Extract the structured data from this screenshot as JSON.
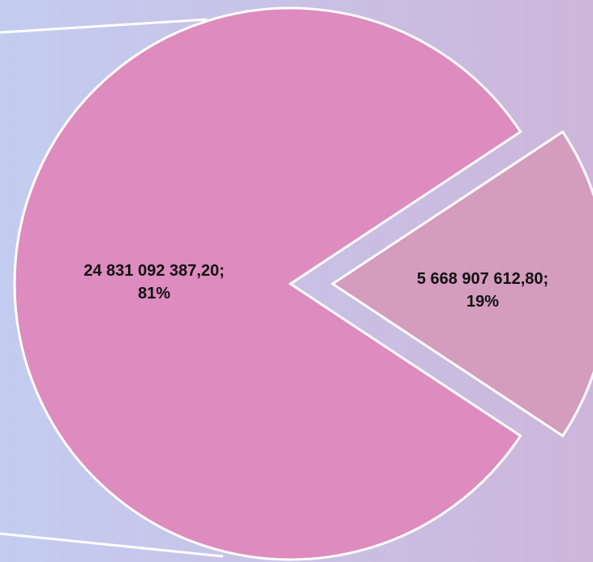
{
  "chart_data": {
    "type": "pie",
    "categories": [
      null,
      null
    ],
    "values": [
      24831092387.2,
      5668907612.8
    ],
    "value_labels": [
      "24 831 092 387,20;",
      "5 668 907 612,80;"
    ],
    "percent_labels": [
      "81%",
      "19%"
    ],
    "colors": [
      "#de8bbf",
      "#d49cbd"
    ]
  }
}
